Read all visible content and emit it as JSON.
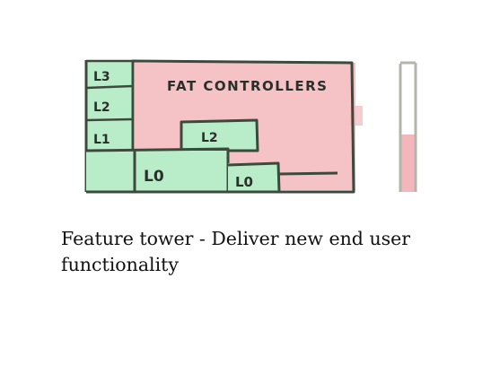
{
  "diagram": {
    "big_area_label": "FAT CONTROLLERS",
    "blocks": {
      "l3": "L3",
      "l2_left": "L2",
      "l1": "L1",
      "l2_mid": "L2",
      "l0_main": "L0",
      "l0_small": "L0"
    }
  },
  "caption": "Feature tower - Deliver new end user functionality",
  "colors": {
    "green_fill": "#b9ecc8",
    "pink_fill": "#f3b7bb",
    "outline": "#3c4a3c",
    "gauge_outline": "#b3b5ad"
  }
}
